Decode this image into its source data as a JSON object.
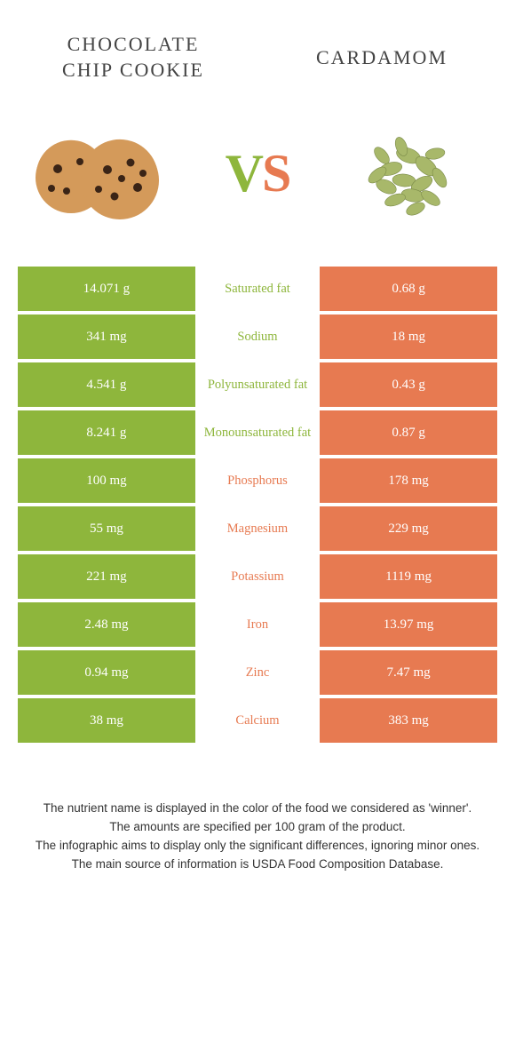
{
  "colors": {
    "green": "#8eb63c",
    "orange": "#e77a51",
    "white": "#ffffff",
    "text": "#444444"
  },
  "food_left": {
    "title": "CHOCOLATE CHIP COOKIE"
  },
  "food_right": {
    "title": "CARDAMOM"
  },
  "vs": {
    "v": "V",
    "s": "S"
  },
  "rows": [
    {
      "left": "14.071 g",
      "label": "Saturated fat",
      "right": "0.68 g",
      "winner": "left"
    },
    {
      "left": "341 mg",
      "label": "Sodium",
      "right": "18 mg",
      "winner": "left"
    },
    {
      "left": "4.541 g",
      "label": "Polyunsaturated fat",
      "right": "0.43 g",
      "winner": "left"
    },
    {
      "left": "8.241 g",
      "label": "Monounsaturated fat",
      "right": "0.87 g",
      "winner": "left"
    },
    {
      "left": "100 mg",
      "label": "Phosphorus",
      "right": "178 mg",
      "winner": "right"
    },
    {
      "left": "55 mg",
      "label": "Magnesium",
      "right": "229 mg",
      "winner": "right"
    },
    {
      "left": "221 mg",
      "label": "Potassium",
      "right": "1119 mg",
      "winner": "right"
    },
    {
      "left": "2.48 mg",
      "label": "Iron",
      "right": "13.97 mg",
      "winner": "right"
    },
    {
      "left": "0.94 mg",
      "label": "Zinc",
      "right": "7.47 mg",
      "winner": "right"
    },
    {
      "left": "38 mg",
      "label": "Calcium",
      "right": "383 mg",
      "winner": "right"
    }
  ],
  "footer": {
    "line1": "The nutrient name is displayed in the color of the food we considered as 'winner'.",
    "line2": "The amounts are specified per 100 gram of the product.",
    "line3": "The infographic aims to display only the significant differences, ignoring minor ones.",
    "line4": "The main source of information is USDA Food Composition Database."
  }
}
